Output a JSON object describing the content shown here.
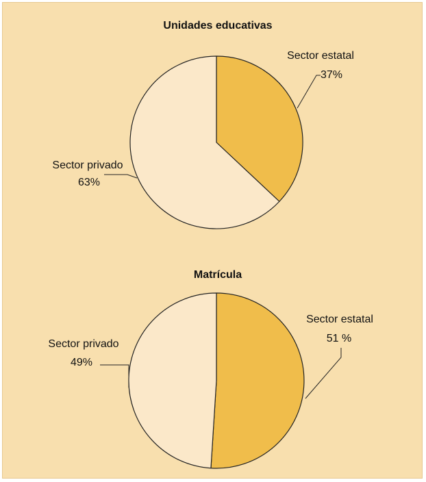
{
  "colors": {
    "panel_background": "#f8dfae",
    "sector_estatal": "#f0bd4b",
    "sector_privado": "#fbe8c9",
    "outline": "#222222"
  },
  "chart_data": [
    {
      "type": "pie",
      "title": "Unidades educativas",
      "slices": [
        {
          "label": "Sector estatal",
          "value": 37,
          "display": "37%",
          "color": "#f0bd4b"
        },
        {
          "label": "Sector privado",
          "value": 63,
          "display": "63%",
          "color": "#fbe8c9"
        }
      ]
    },
    {
      "type": "pie",
      "title": "Matrícula",
      "slices": [
        {
          "label": "Sector estatal",
          "value": 51,
          "display": "51 %",
          "color": "#f0bd4b"
        },
        {
          "label": "Sector privado",
          "value": 49,
          "display": "49%",
          "color": "#fbe8c9"
        }
      ]
    }
  ]
}
